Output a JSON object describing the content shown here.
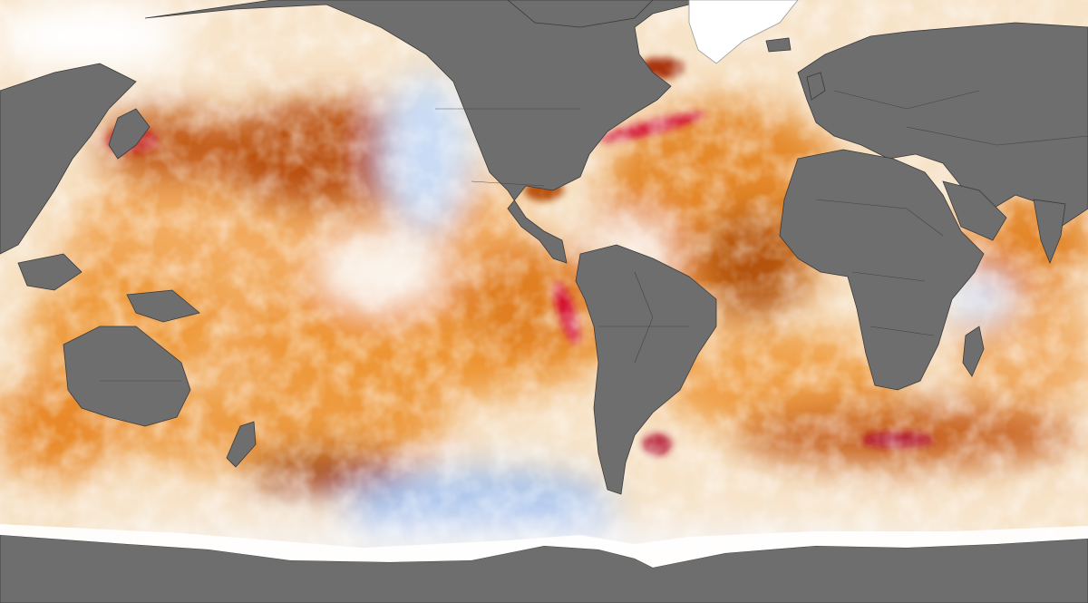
{
  "map": {
    "projection": "equirectangular",
    "variable": "sea-surface-temperature-anomaly",
    "colors": {
      "land": "#6e6e6e",
      "ice": "#ffffff",
      "border": "#3a3a3a",
      "neutral": "#fbf8f3",
      "warm_light": "#f6c58e",
      "warm": "#ee9430",
      "warm_strong": "#d46a12",
      "hot": "#a23a06",
      "very_hot": "#7a1a04",
      "extreme": "#d4102a",
      "cool_light": "#cfe0f6",
      "cool": "#8cb4ea",
      "cold": "#4e7cd6"
    }
  }
}
